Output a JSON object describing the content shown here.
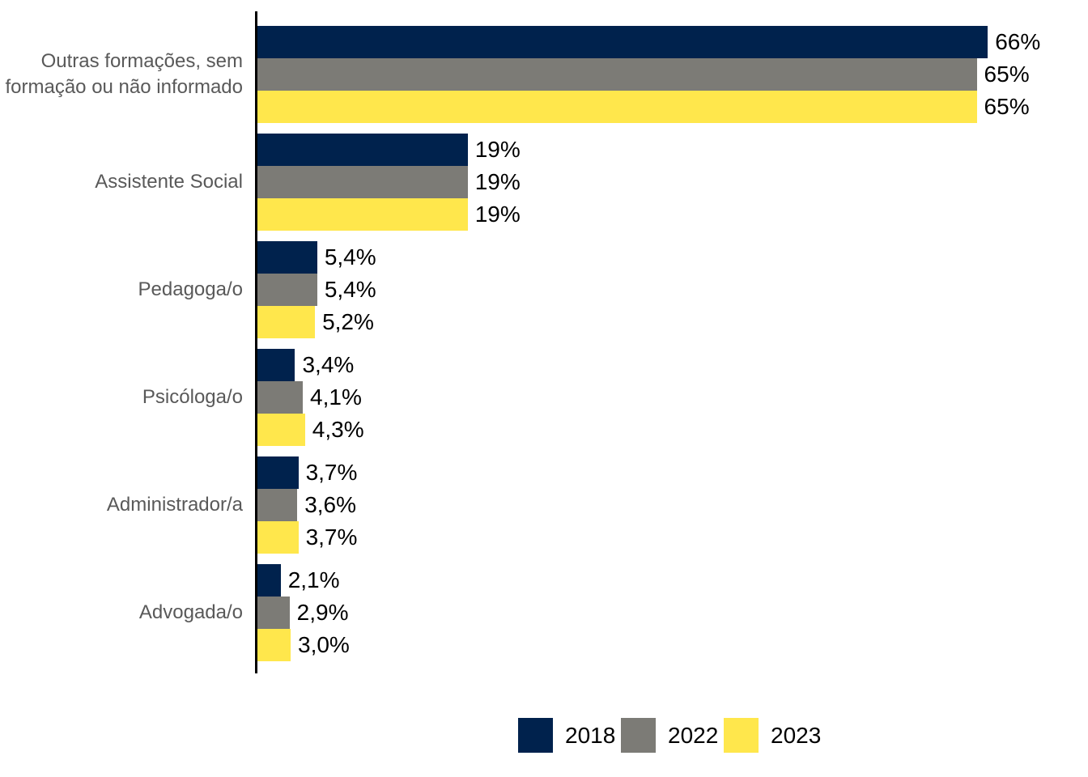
{
  "chart_data": {
    "type": "bar",
    "orientation": "horizontal",
    "title": "",
    "xlabel": "",
    "ylabel": "",
    "grid": false,
    "legend_position": "bottom",
    "xlim": [
      0,
      66
    ],
    "axis_color": "#000000",
    "value_label_color": "#000000",
    "category_label_color": "#595959",
    "categories": [
      "Outras formações, sem formação ou não informado",
      "Assistente Social",
      "Pedagoga/o",
      "Psicóloga/o",
      "Administrador/a",
      "Advogada/o"
    ],
    "series": [
      {
        "name": "2018",
        "color": "#00224D",
        "values": [
          66,
          19,
          5.4,
          3.4,
          3.7,
          2.1
        ],
        "labels": [
          "66%",
          "19%",
          "5,4%",
          "3,4%",
          "3,7%",
          "2,1%"
        ]
      },
      {
        "name": "2022",
        "color": "#7C7B76",
        "values": [
          65,
          19,
          5.4,
          4.1,
          3.6,
          2.9
        ],
        "labels": [
          "65%",
          "19%",
          "5,4%",
          "4,1%",
          "3,6%",
          "2,9%"
        ]
      },
      {
        "name": "2023",
        "color": "#FFE74C",
        "values": [
          65,
          19,
          5.2,
          4.3,
          3.7,
          3.0
        ],
        "labels": [
          "65%",
          "19%",
          "5,2%",
          "4,3%",
          "3,7%",
          "3,0%"
        ]
      }
    ]
  }
}
